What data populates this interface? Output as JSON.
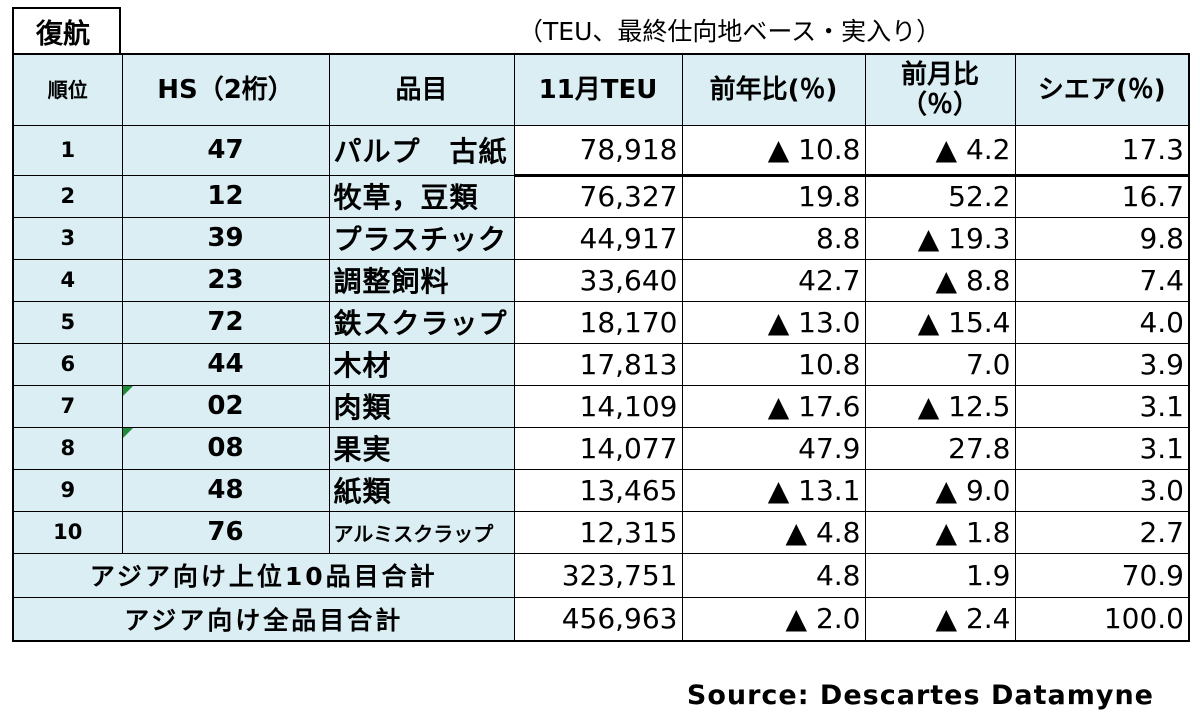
{
  "tag": "復航",
  "unit_note": "（TEU、最終仕向地ベース・実入り）",
  "headers": {
    "rank": "順位",
    "hs": "HS（2桁）",
    "item": "品目",
    "teu": "11月TEU",
    "yoy": "前年比(％)",
    "mom_line1": "前月比",
    "mom_line2": "（％）",
    "share": "シエア(％)"
  },
  "rows": [
    {
      "rank": "1",
      "hs": "47",
      "item": "パルプ　古紙",
      "teu": "78,918",
      "yoy": "▲ 10.8",
      "mom": "▲ 4.2",
      "share": "17.3"
    },
    {
      "rank": "2",
      "hs": "12",
      "item": "牧草，豆類",
      "teu": "76,327",
      "yoy": "19.8",
      "mom": "52.2",
      "share": "16.7"
    },
    {
      "rank": "3",
      "hs": "39",
      "item": "プラスチック",
      "teu": "44,917",
      "yoy": "8.8",
      "mom": "▲ 19.3",
      "share": "9.8"
    },
    {
      "rank": "4",
      "hs": "23",
      "item": "調整飼料",
      "teu": "33,640",
      "yoy": "42.7",
      "mom": "▲ 8.8",
      "share": "7.4"
    },
    {
      "rank": "5",
      "hs": "72",
      "item": "鉄スクラップ",
      "teu": "18,170",
      "yoy": "▲ 13.0",
      "mom": "▲ 15.4",
      "share": "4.0"
    },
    {
      "rank": "6",
      "hs": "44",
      "item": "木材",
      "teu": "17,813",
      "yoy": "10.8",
      "mom": "7.0",
      "share": "3.9"
    },
    {
      "rank": "7",
      "hs": "02",
      "item": "肉類",
      "teu": "14,109",
      "yoy": "▲ 17.6",
      "mom": "▲ 12.5",
      "share": "3.1"
    },
    {
      "rank": "8",
      "hs": "08",
      "item": "果実",
      "teu": "14,077",
      "yoy": "47.9",
      "mom": "27.8",
      "share": "3.1"
    },
    {
      "rank": "9",
      "hs": "48",
      "item": "紙類",
      "teu": "13,465",
      "yoy": "▲ 13.1",
      "mom": "▲ 9.0",
      "share": "3.0"
    },
    {
      "rank": "10",
      "hs": "76",
      "item": "アルミスクラップ",
      "teu": "12,315",
      "yoy": "▲ 4.8",
      "mom": "▲ 1.8",
      "share": "2.7"
    }
  ],
  "totals": [
    {
      "label": "アジア向け上位10品目合計",
      "teu": "323,751",
      "yoy": "4.8",
      "mom": "1.9",
      "share": "70.9"
    },
    {
      "label": "アジア向け全品目合計",
      "teu": "456,963",
      "yoy": "▲ 2.0",
      "mom": "▲ 2.4",
      "share": "100.0"
    }
  ],
  "source": "Source: Descartes Datamyne",
  "colors": {
    "header_bg": "#daeef3",
    "flag": "#1f8a3a"
  }
}
